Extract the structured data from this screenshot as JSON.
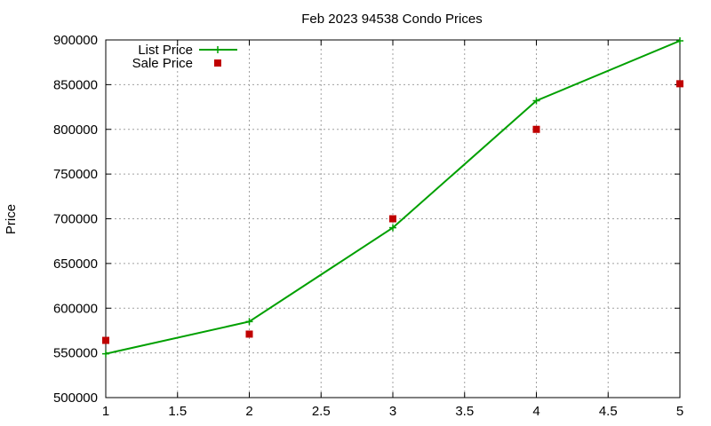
{
  "chart_data": {
    "type": "line",
    "title": "Feb 2023 94538 Condo Prices",
    "xlabel": "",
    "ylabel": "Price",
    "xlim": [
      1,
      5
    ],
    "ylim": [
      500000,
      900000
    ],
    "x_ticks": [
      "1",
      "1.5",
      "2",
      "2.5",
      "3",
      "3.5",
      "4",
      "4.5",
      "5"
    ],
    "y_ticks": [
      "500000",
      "550000",
      "600000",
      "650000",
      "700000",
      "750000",
      "800000",
      "850000",
      "900000"
    ],
    "grid": true,
    "legend_position": "top-left",
    "series": [
      {
        "name": "List Price",
        "style": "line+plus-markers",
        "color": "#00a000",
        "x": [
          1,
          2,
          3,
          4,
          5
        ],
        "y": [
          549000,
          585000,
          690000,
          832000,
          899000
        ]
      },
      {
        "name": "Sale Price",
        "style": "square-markers",
        "color": "#c00000",
        "x": [
          1,
          2,
          3,
          4,
          5
        ],
        "y": [
          564000,
          571000,
          700000,
          800000,
          851000
        ]
      }
    ]
  }
}
